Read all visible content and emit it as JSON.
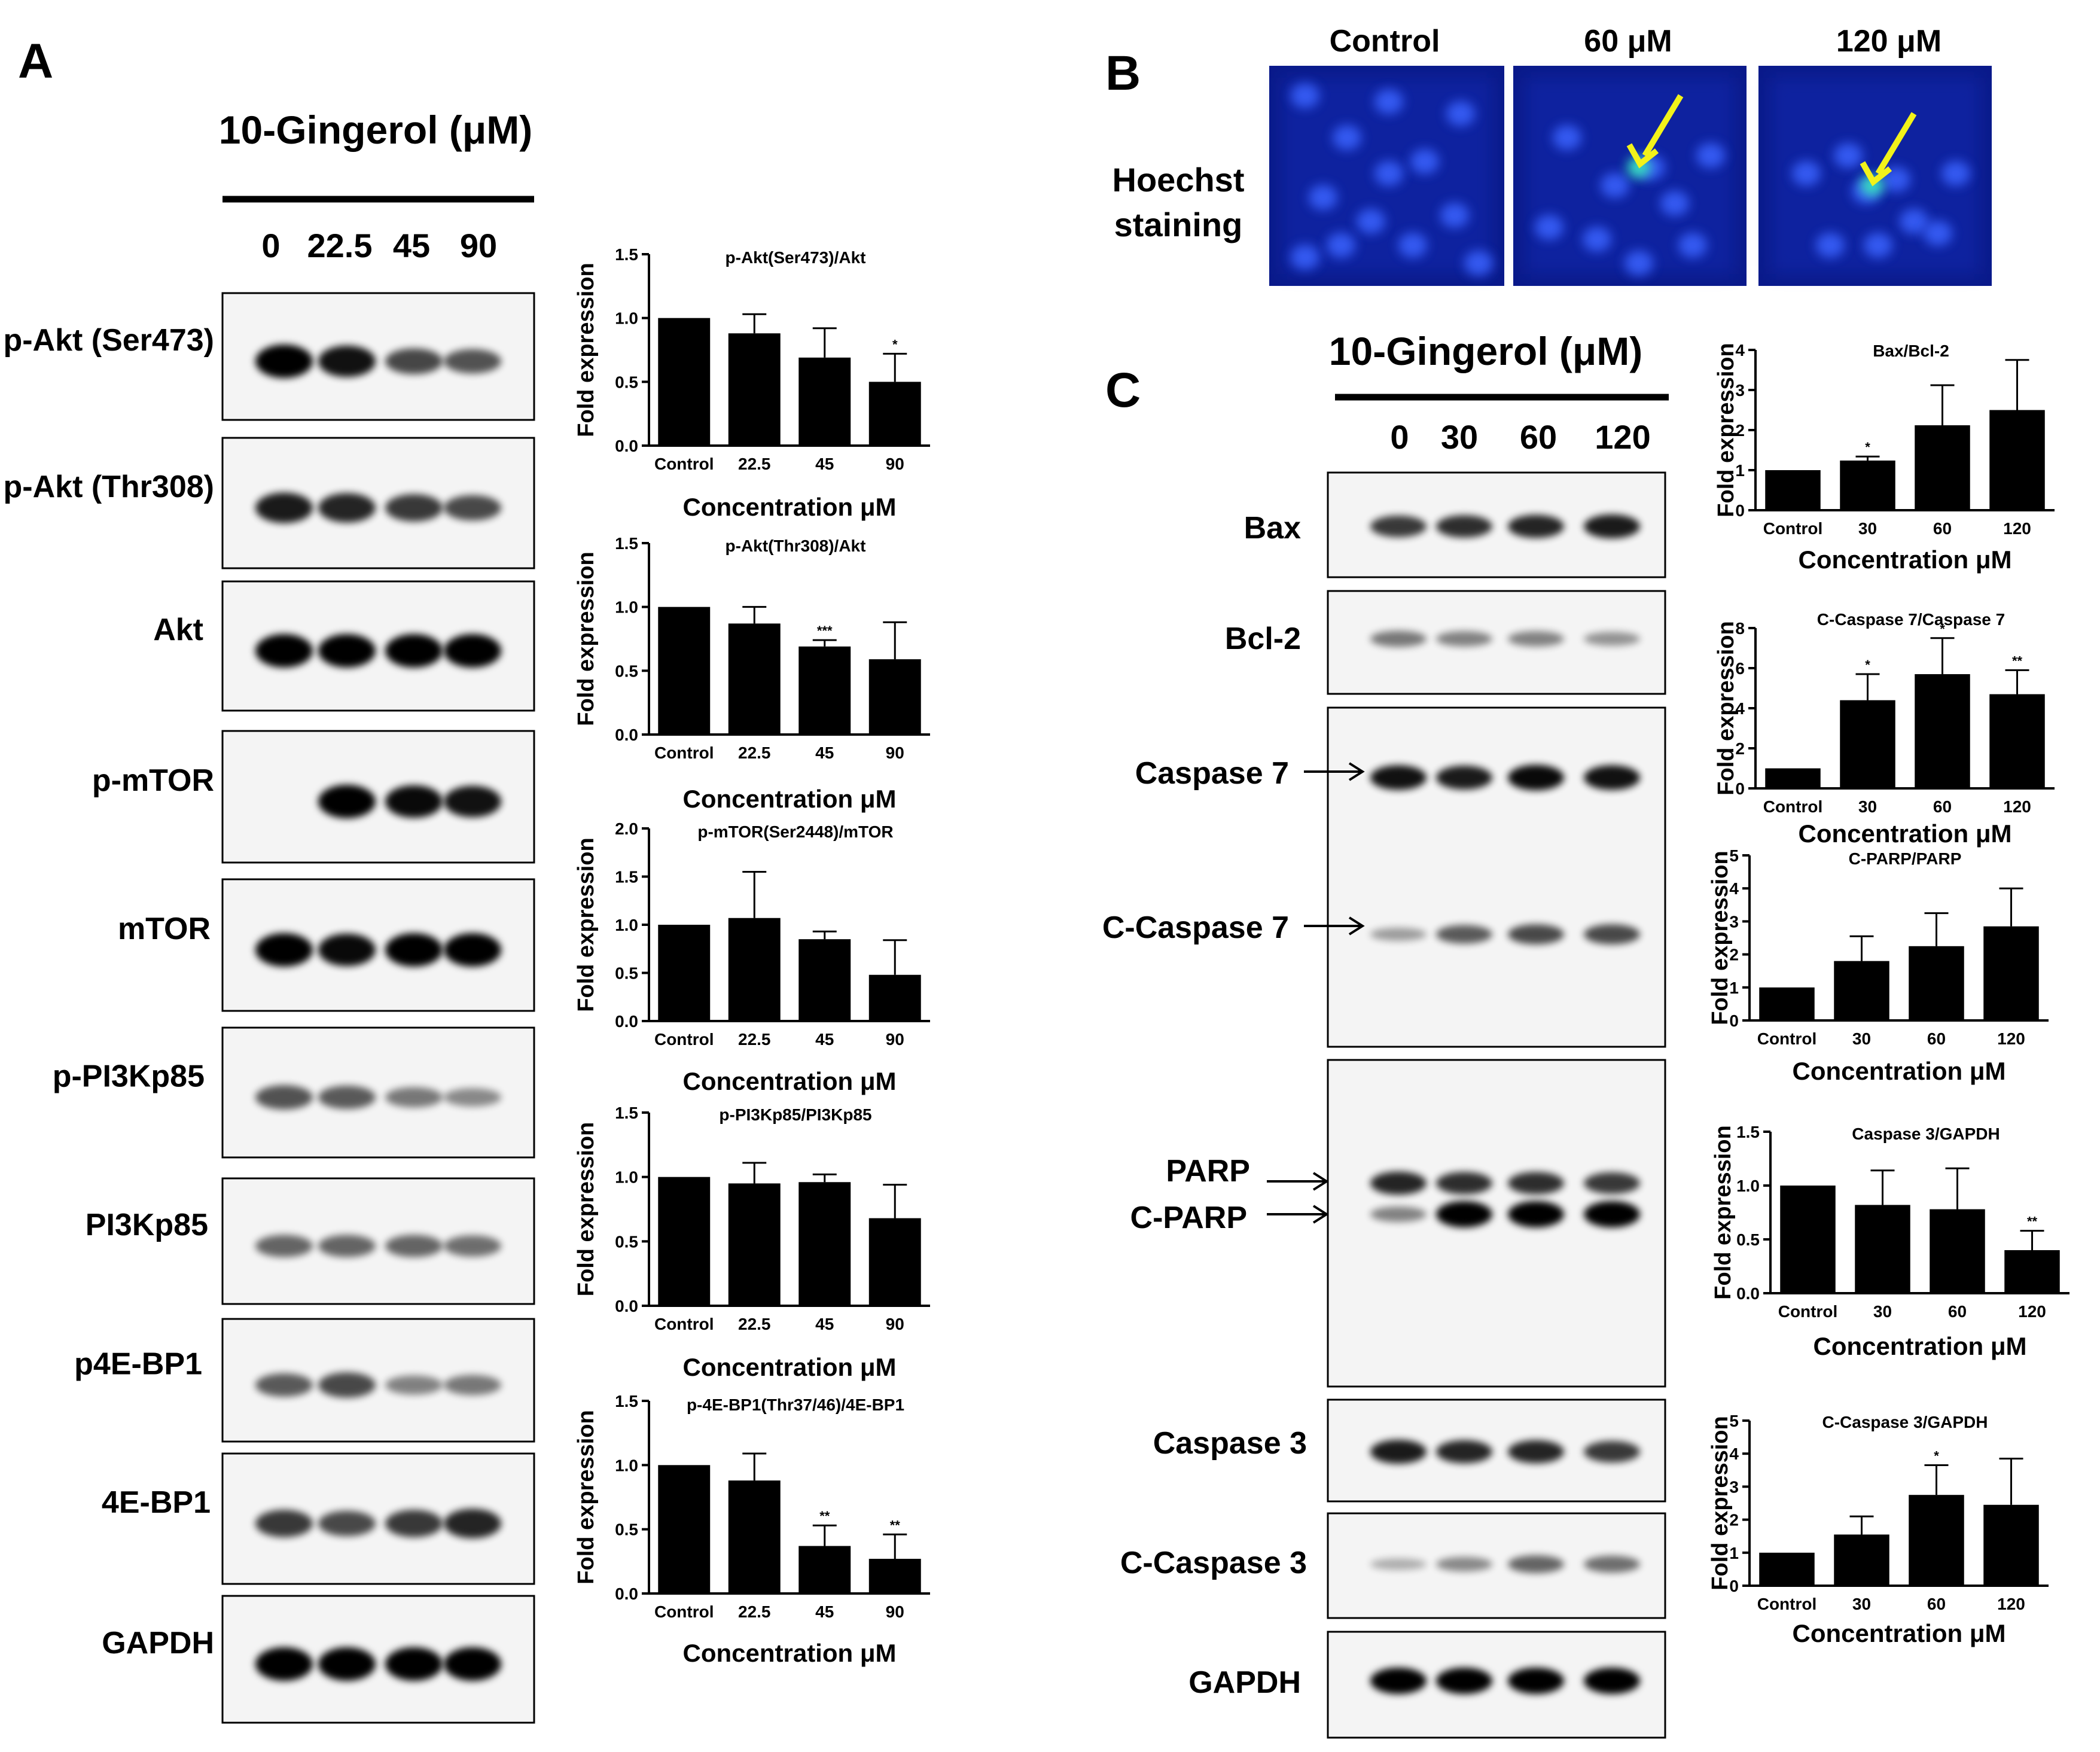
{
  "panel_labels": {
    "a": "A",
    "b": "B",
    "c": "C"
  },
  "panel_a": {
    "treatment_title": "10-Gingerol (μM)",
    "doses": [
      "0",
      "22.5",
      "45",
      "90"
    ],
    "blots": [
      {
        "label": "p-Akt (Ser473)",
        "bands": [
          1.0,
          0.9,
          0.62,
          0.55
        ]
      },
      {
        "label": "p-Akt (Thr308)",
        "bands": [
          0.85,
          0.8,
          0.7,
          0.6
        ]
      },
      {
        "label": "Akt",
        "bands": [
          1.0,
          1.0,
          1.0,
          1.0
        ]
      },
      {
        "label": "p-mTOR",
        "bands": [
          0.0,
          1.0,
          0.95,
          0.9
        ]
      },
      {
        "label": "mTOR",
        "bands": [
          1.0,
          0.95,
          1.0,
          1.0
        ]
      },
      {
        "label": "p-PI3Kp85",
        "bands": [
          0.55,
          0.5,
          0.35,
          0.25
        ]
      },
      {
        "label": "PI3Kp85",
        "bands": [
          0.45,
          0.45,
          0.45,
          0.4
        ]
      },
      {
        "label": "p4E-BP1",
        "bands": [
          0.5,
          0.6,
          0.3,
          0.35
        ]
      },
      {
        "label": "4E-BP1",
        "bands": [
          0.7,
          0.6,
          0.7,
          0.8
        ]
      },
      {
        "label": "GAPDH",
        "bands": [
          1.0,
          1.0,
          1.0,
          1.0
        ]
      }
    ]
  },
  "panel_b": {
    "row_label_line1": "Hoechst",
    "row_label_line2": "staining",
    "image_labels": [
      "Control",
      "60 μM",
      "120 μM"
    ]
  },
  "panel_c": {
    "treatment_title": "10-Gingerol (μM)",
    "doses": [
      "0",
      "30",
      "60",
      "120"
    ],
    "blots": [
      {
        "label": "Bax"
      },
      {
        "label": "Bcl-2"
      },
      {
        "label": "Caspase 7"
      },
      {
        "label": "C-Caspase 7"
      },
      {
        "label": "PARP"
      },
      {
        "label": "C-PARP"
      },
      {
        "label": "Caspase 3"
      },
      {
        "label": "C-Caspase 3"
      },
      {
        "label": "GAPDH"
      }
    ]
  },
  "chart_data": [
    {
      "type": "bar",
      "title": "p-Akt(Ser473)/Akt",
      "categories": [
        "Control",
        "22.5",
        "45",
        "90"
      ],
      "values": [
        1.0,
        0.88,
        0.69,
        0.5
      ],
      "errors": [
        0,
        0.15,
        0.23,
        0.22
      ],
      "significance": [
        "",
        "",
        "",
        "*"
      ],
      "ylabel": "Fold expression",
      "xlabel": "Concentration μM",
      "ylim": [
        0,
        1.5
      ],
      "yticks": [
        "0.0",
        "0.5",
        "1.0",
        "1.5"
      ]
    },
    {
      "type": "bar",
      "title": "p-Akt(Thr308)/Akt",
      "categories": [
        "Control",
        "22.5",
        "45",
        "90"
      ],
      "values": [
        1.0,
        0.87,
        0.69,
        0.59
      ],
      "errors": [
        0,
        0.13,
        0.05,
        0.29
      ],
      "significance": [
        "",
        "",
        "***",
        ""
      ],
      "ylabel": "Fold expression",
      "xlabel": "Concentration μM",
      "ylim": [
        0,
        1.5
      ],
      "yticks": [
        "0.0",
        "0.5",
        "1.0",
        "1.5"
      ]
    },
    {
      "type": "bar",
      "title": "p-mTOR(Ser2448)/mTOR",
      "categories": [
        "Control",
        "22.5",
        "45",
        "90"
      ],
      "values": [
        1.0,
        1.07,
        0.85,
        0.48
      ],
      "errors": [
        0,
        0.48,
        0.08,
        0.36
      ],
      "significance": [
        "",
        "",
        "",
        ""
      ],
      "ylabel": "Fold expression",
      "xlabel": "Concentration μM",
      "ylim": [
        0,
        2.0
      ],
      "yticks": [
        "0.0",
        "0.5",
        "1.0",
        "1.5",
        "2.0"
      ]
    },
    {
      "type": "bar",
      "title": "p-PI3Kp85/PI3Kp85",
      "categories": [
        "Control",
        "22.5",
        "45",
        "90"
      ],
      "values": [
        1.0,
        0.95,
        0.96,
        0.68
      ],
      "errors": [
        0,
        0.16,
        0.06,
        0.26
      ],
      "significance": [
        "",
        "",
        "",
        ""
      ],
      "ylabel": "Fold expression",
      "xlabel": "Concentration μM",
      "ylim": [
        0,
        1.5
      ],
      "yticks": [
        "0.0",
        "0.5",
        "1.0",
        "1.5"
      ]
    },
    {
      "type": "bar",
      "title": "p-4E-BP1(Thr37/46)/4E-BP1",
      "categories": [
        "Control",
        "22.5",
        "45",
        "90"
      ],
      "values": [
        1.0,
        0.88,
        0.37,
        0.27
      ],
      "errors": [
        0,
        0.21,
        0.16,
        0.19
      ],
      "significance": [
        "",
        "",
        "**",
        "**"
      ],
      "ylabel": "Fold expression",
      "xlabel": "Concentration μM",
      "ylim": [
        0,
        1.5
      ],
      "yticks": [
        "0.0",
        "0.5",
        "1.0",
        "1.5"
      ]
    },
    {
      "type": "bar",
      "title": "Bax/Bcl-2",
      "categories": [
        "Control",
        "30",
        "60",
        "120"
      ],
      "values": [
        1.0,
        1.24,
        2.12,
        2.5
      ],
      "errors": [
        0,
        0.1,
        1.0,
        1.25
      ],
      "significance": [
        "",
        "*",
        "",
        ""
      ],
      "ylabel": "Fold expression",
      "xlabel": "Concentration μM",
      "ylim": [
        0,
        4
      ],
      "yticks": [
        "0",
        "1",
        "2",
        "3",
        "4"
      ]
    },
    {
      "type": "bar",
      "title": "C-Caspase 7/Caspase 7",
      "categories": [
        "Control",
        "30",
        "60",
        "120"
      ],
      "values": [
        1.0,
        4.4,
        5.7,
        4.7
      ],
      "errors": [
        0,
        1.3,
        1.8,
        1.2
      ],
      "significance": [
        "",
        "*",
        "*",
        "**"
      ],
      "ylabel": "Fold expression",
      "xlabel": "Concentration μM",
      "ylim": [
        0,
        8
      ],
      "yticks": [
        "0",
        "2",
        "4",
        "6",
        "8"
      ]
    },
    {
      "type": "bar",
      "title": "C-PARP/PARP",
      "categories": [
        "Control",
        "30",
        "60",
        "120"
      ],
      "values": [
        1.0,
        1.8,
        2.25,
        2.85
      ],
      "errors": [
        0,
        0.75,
        1.0,
        1.15
      ],
      "significance": [
        "",
        "",
        "",
        ""
      ],
      "ylabel": "Fold expression",
      "xlabel": "Concentration μM",
      "ylim": [
        0,
        5
      ],
      "yticks": [
        "0",
        "1",
        "2",
        "3",
        "4",
        "5"
      ]
    },
    {
      "type": "bar",
      "title": "Caspase 3/GAPDH",
      "categories": [
        "Control",
        "30",
        "60",
        "120"
      ],
      "values": [
        1.0,
        0.82,
        0.78,
        0.4
      ],
      "errors": [
        0,
        0.32,
        0.38,
        0.18
      ],
      "significance": [
        "",
        "",
        "",
        "**"
      ],
      "ylabel": "Fold expression",
      "xlabel": "Concentration μM",
      "ylim": [
        0,
        1.5
      ],
      "yticks": [
        "0.0",
        "0.5",
        "1.0",
        "1.5"
      ]
    },
    {
      "type": "bar",
      "title": "C-Caspase 3/GAPDH",
      "categories": [
        "Control",
        "30",
        "60",
        "120"
      ],
      "values": [
        1.0,
        1.55,
        2.75,
        2.45
      ],
      "errors": [
        0,
        0.55,
        0.9,
        1.4
      ],
      "significance": [
        "",
        "",
        "*",
        ""
      ],
      "ylabel": "Fold expression",
      "xlabel": "Concentration μM",
      "ylim": [
        0,
        5
      ],
      "yticks": [
        "0",
        "1",
        "2",
        "3",
        "4",
        "5"
      ]
    }
  ]
}
